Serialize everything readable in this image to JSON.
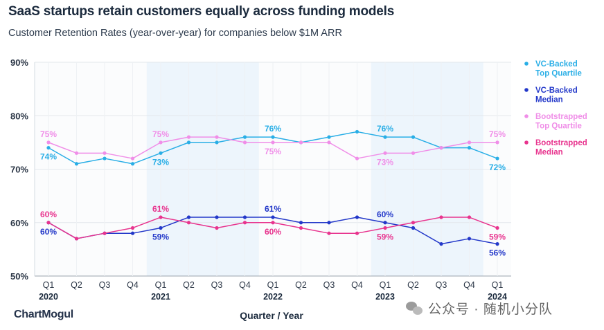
{
  "title": "SaaS startups retain customers equally across funding models",
  "subtitle": "Customer Retention Rates (year-over-year) for companies below $1M ARR",
  "brand": "ChartMogul",
  "watermark": "公众号 · 随机小分队",
  "chart_data": {
    "type": "line",
    "xlabel": "Quarter / Year",
    "ylabel": "",
    "ylim": [
      50,
      90
    ],
    "yticks": [
      "50%",
      "60%",
      "70%",
      "80%",
      "90%"
    ],
    "ytick_values": [
      50,
      60,
      70,
      80,
      90
    ],
    "categories": [
      "Q1",
      "Q2",
      "Q3",
      "Q4",
      "Q1",
      "Q2",
      "Q3",
      "Q4",
      "Q1",
      "Q2",
      "Q3",
      "Q4",
      "Q1",
      "Q2",
      "Q3",
      "Q4",
      "Q1"
    ],
    "years": [
      {
        "label": "2020",
        "index": 0
      },
      {
        "label": "2021",
        "index": 4
      },
      {
        "label": "2022",
        "index": 8
      },
      {
        "label": "2023",
        "index": 12
      },
      {
        "label": "2024",
        "index": 16
      }
    ],
    "shaded_ranges": [
      [
        4,
        7
      ],
      [
        12,
        15
      ]
    ],
    "grid": true,
    "legend_position": "right",
    "series": [
      {
        "name": "VC-Backed Top Quartile",
        "legend_lines": [
          "VC-Backed",
          "Top Quartile"
        ],
        "color": "#29aee6",
        "values": [
          74,
          71,
          72,
          71,
          73,
          75,
          75,
          76,
          76,
          75,
          76,
          77,
          76,
          76,
          74,
          74,
          72
        ],
        "labels": [
          {
            "index": 0,
            "text": "74%",
            "pos": "below"
          },
          {
            "index": 4,
            "text": "73%",
            "pos": "below"
          },
          {
            "index": 8,
            "text": "76%",
            "pos": "above"
          },
          {
            "index": 12,
            "text": "76%",
            "pos": "above"
          },
          {
            "index": 16,
            "text": "72%",
            "pos": "below"
          }
        ]
      },
      {
        "name": "VC-Backed Median",
        "legend_lines": [
          "VC-Backed",
          "Median"
        ],
        "color": "#2338c9",
        "values": [
          60,
          57,
          58,
          58,
          59,
          61,
          61,
          61,
          61,
          60,
          60,
          61,
          60,
          59,
          56,
          57,
          56
        ],
        "labels": [
          {
            "index": 0,
            "text": "60%",
            "pos": "below"
          },
          {
            "index": 4,
            "text": "59%",
            "pos": "below"
          },
          {
            "index": 8,
            "text": "61%",
            "pos": "above"
          },
          {
            "index": 12,
            "text": "60%",
            "pos": "above"
          },
          {
            "index": 16,
            "text": "56%",
            "pos": "below"
          }
        ]
      },
      {
        "name": "Bootstrapped Top Quartile",
        "legend_lines": [
          "Bootstrapped",
          "Top Quartile"
        ],
        "color": "#f08ee8",
        "values": [
          75,
          73,
          73,
          72,
          75,
          76,
          76,
          75,
          75,
          75,
          75,
          72,
          73,
          73,
          74,
          75,
          75
        ],
        "labels": [
          {
            "index": 0,
            "text": "75%",
            "pos": "above"
          },
          {
            "index": 4,
            "text": "75%",
            "pos": "above"
          },
          {
            "index": 8,
            "text": "75%",
            "pos": "below"
          },
          {
            "index": 12,
            "text": "73%",
            "pos": "below"
          },
          {
            "index": 16,
            "text": "75%",
            "pos": "above"
          }
        ]
      },
      {
        "name": "Bootstrapped Median",
        "legend_lines": [
          "Bootstrapped",
          "Median"
        ],
        "color": "#e8348e",
        "values": [
          60,
          57,
          58,
          59,
          61,
          60,
          59,
          60,
          60,
          59,
          58,
          58,
          59,
          60,
          61,
          61,
          59
        ],
        "labels": [
          {
            "index": 0,
            "text": "60%",
            "pos": "above"
          },
          {
            "index": 4,
            "text": "61%",
            "pos": "above"
          },
          {
            "index": 8,
            "text": "60%",
            "pos": "below"
          },
          {
            "index": 12,
            "text": "59%",
            "pos": "below"
          },
          {
            "index": 16,
            "text": "59%",
            "pos": "below"
          }
        ]
      }
    ]
  }
}
